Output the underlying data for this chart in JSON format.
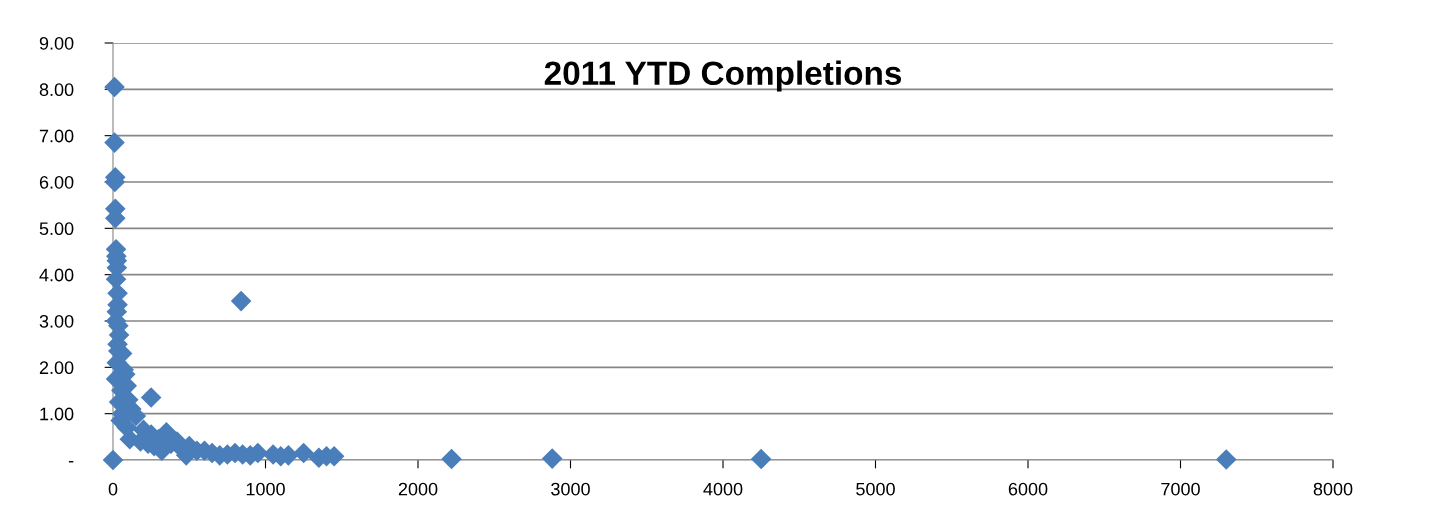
{
  "chart_data": {
    "type": "scatter",
    "title": "2011 YTD Completions",
    "x": [
      10,
      10,
      15,
      12,
      15,
      15,
      20,
      22,
      25,
      25,
      20,
      30,
      30,
      25,
      20,
      35,
      40,
      30,
      35,
      60,
      25,
      70,
      80,
      20,
      90,
      55,
      100,
      40,
      120,
      60,
      150,
      50,
      90,
      200,
      250,
      110,
      180,
      300,
      230,
      350,
      380,
      270,
      420,
      450,
      320,
      500,
      550,
      480,
      600,
      650,
      700,
      750,
      800,
      850,
      900,
      950,
      1050,
      1100,
      1150,
      1250,
      1350,
      1400,
      1450,
      250,
      840,
      2220,
      2880,
      4250,
      7300,
      0
    ],
    "values": [
      8.05,
      6.85,
      6.1,
      6.0,
      5.42,
      5.22,
      4.55,
      4.4,
      4.3,
      4.15,
      3.9,
      3.6,
      3.35,
      3.2,
      3.0,
      2.9,
      2.7,
      2.5,
      2.35,
      2.3,
      2.1,
      1.95,
      1.85,
      1.75,
      1.6,
      1.5,
      1.3,
      1.25,
      1.1,
      1.0,
      0.95,
      0.85,
      0.7,
      0.65,
      0.55,
      0.45,
      0.4,
      0.45,
      0.35,
      0.6,
      0.35,
      0.3,
      0.4,
      0.25,
      0.2,
      0.3,
      0.2,
      0.1,
      0.2,
      0.15,
      0.1,
      0.12,
      0.15,
      0.12,
      0.1,
      0.15,
      0.12,
      0.08,
      0.1,
      0.15,
      0.05,
      0.08,
      0.08,
      1.35,
      3.43,
      0.02,
      0.03,
      0.02,
      0.01,
      0
    ],
    "color": "#4a7ebb",
    "marker": "diamond",
    "xlim": [
      0,
      8000
    ],
    "xticks": [
      0,
      1000,
      2000,
      3000,
      4000,
      5000,
      6000,
      7000,
      8000
    ],
    "ylim": [
      0,
      9
    ],
    "yticks": [
      {
        "value": 0,
        "label": "-"
      },
      {
        "value": 1,
        "label": "1.00"
      },
      {
        "value": 2,
        "label": "2.00"
      },
      {
        "value": 3,
        "label": "3.00"
      },
      {
        "value": 4,
        "label": "4.00"
      },
      {
        "value": 5,
        "label": "5.00"
      },
      {
        "value": 6,
        "label": "6.00"
      },
      {
        "value": 7,
        "label": "7.00"
      },
      {
        "value": 8,
        "label": "8.00"
      },
      {
        "value": 9,
        "label": "9.00"
      }
    ],
    "grid": "y"
  }
}
